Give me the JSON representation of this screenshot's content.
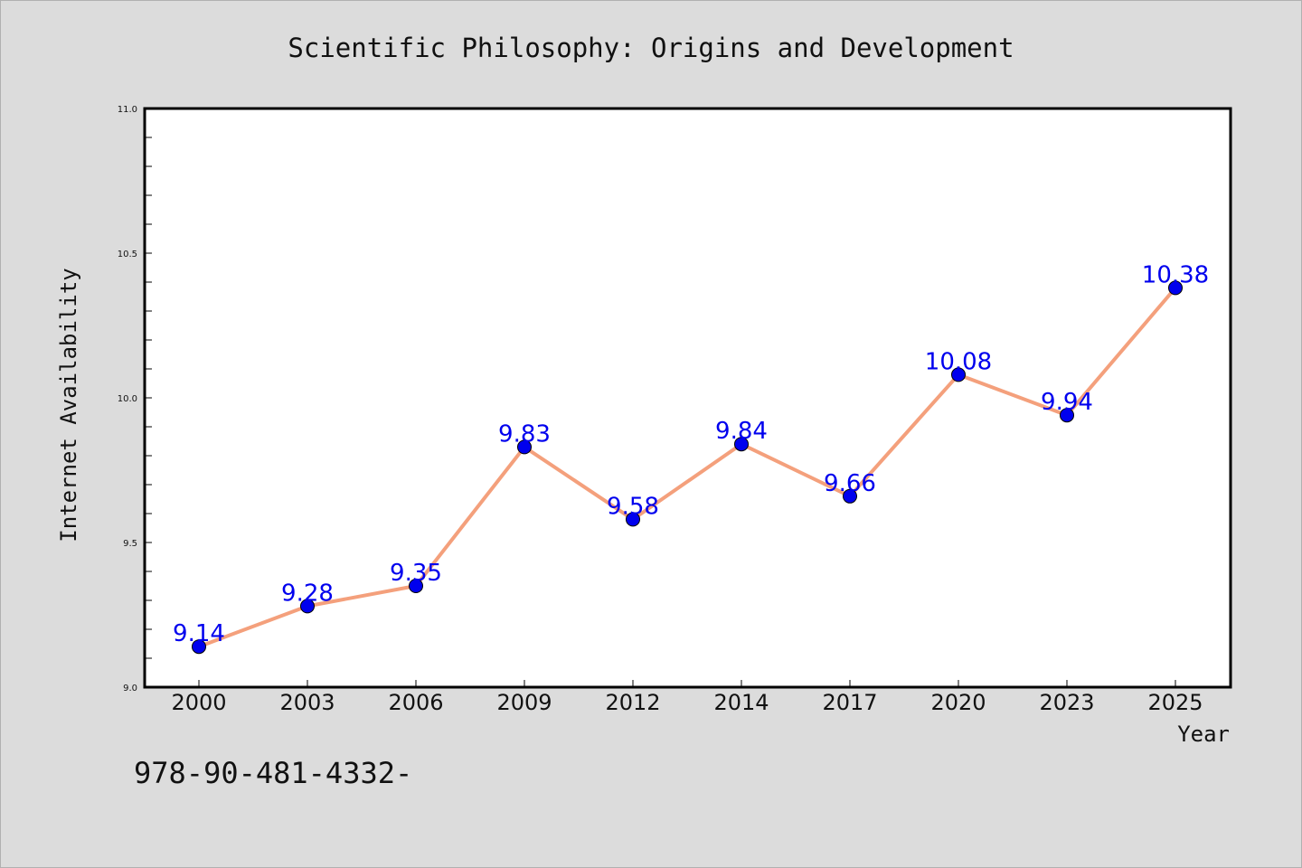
{
  "chart_data": {
    "type": "line",
    "title": "Scientific Philosophy: Origins and Development",
    "xlabel": "Year",
    "ylabel": "Internet Availability",
    "categories": [
      "2000",
      "2003",
      "2006",
      "2009",
      "2012",
      "2014",
      "2017",
      "2020",
      "2023",
      "2025"
    ],
    "series": [
      {
        "values": [
          9.14,
          9.28,
          9.35,
          9.83,
          9.58,
          9.84,
          9.66,
          10.08,
          9.94,
          10.38
        ],
        "labels": [
          "9.14",
          "9.28",
          "9.35",
          "9.83",
          "9.58",
          "9.84",
          "9.66",
          "10.08",
          "9.94",
          "10.38"
        ]
      }
    ],
    "ylim": [
      9.0,
      11.0
    ],
    "yticks": [
      "9.0",
      "9.5",
      "10.0",
      "10.5",
      "11.0"
    ],
    "grid": false,
    "colors": {
      "line": "#f4a07c",
      "marker": "#0000ee",
      "label": "#0000ee",
      "background": "#dcdcdc",
      "plot_area": "#ffffff"
    }
  },
  "footer_text": "978-90-481-4332-"
}
